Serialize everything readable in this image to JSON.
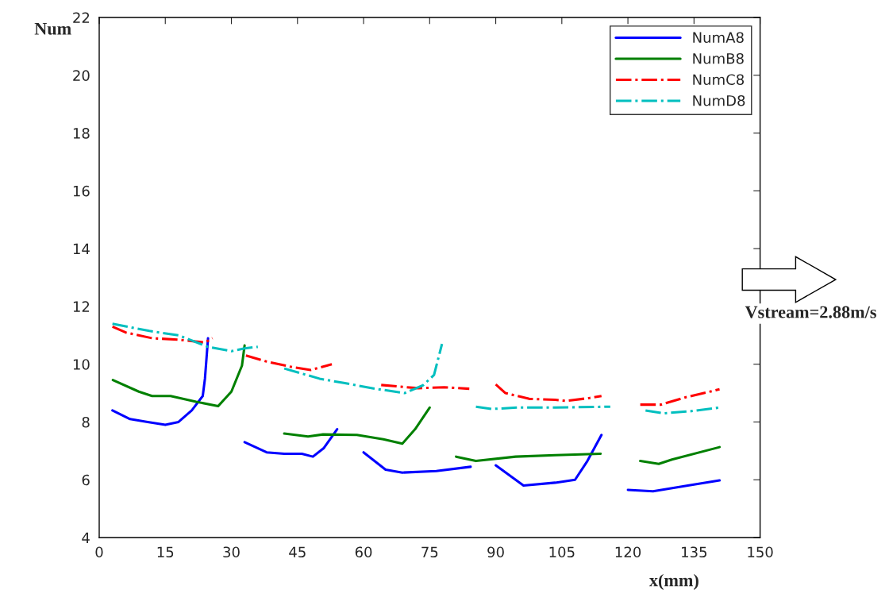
{
  "chart_data": {
    "type": "line",
    "xlabel": "x(mm)",
    "ylabel": "Num",
    "xlim": [
      0,
      150
    ],
    "xticks": [
      0,
      15,
      30,
      45,
      60,
      75,
      90,
      105,
      120,
      135,
      150
    ],
    "ylim": [
      4,
      22
    ],
    "yticks": [
      4,
      6,
      8,
      10,
      12,
      14,
      16,
      18,
      20,
      22
    ],
    "grid": false,
    "legend": "top right",
    "marker": "none",
    "annotations": [
      "Vstream=2.88m/s"
    ],
    "series": [
      {
        "name": "NumA8",
        "color": "#0000ff",
        "line_style": "solid",
        "x": [
          3,
          7,
          11,
          15,
          18,
          21,
          23.5,
          24,
          24.7,
          null,
          33,
          38,
          42,
          46,
          48.5,
          51,
          54,
          null,
          60,
          65,
          68.8,
          76.5,
          84.3,
          null,
          90,
          96.3,
          103.5,
          108,
          110.8,
          114,
          null,
          120,
          125.7,
          133.6,
          140.8
        ],
        "values": [
          8.4,
          8.1,
          8.0,
          7.9,
          8.0,
          8.4,
          8.9,
          9.5,
          10.9,
          null,
          7.3,
          6.95,
          6.9,
          6.9,
          6.8,
          7.1,
          7.75,
          null,
          6.95,
          6.35,
          6.25,
          6.3,
          6.45,
          null,
          6.5,
          5.8,
          5.9,
          6.0,
          6.65,
          7.55,
          null,
          5.65,
          5.6,
          5.8,
          5.98
        ]
      },
      {
        "name": "NumB8",
        "color": "#008000",
        "line_style": "solid",
        "x": [
          3.1,
          9,
          12,
          16.2,
          22,
          27,
          30,
          32.4,
          33,
          null,
          42,
          47.4,
          50.8,
          58.5,
          64.5,
          68.8,
          71.7,
          75,
          null,
          81,
          85.5,
          94.5,
          103.5,
          113.8,
          null,
          122.8,
          127,
          130,
          140.8
        ],
        "values": [
          9.45,
          9.05,
          8.9,
          8.9,
          8.7,
          8.55,
          9.05,
          9.95,
          10.65,
          null,
          7.6,
          7.5,
          7.57,
          7.55,
          7.4,
          7.25,
          7.75,
          8.5,
          null,
          6.8,
          6.65,
          6.8,
          6.85,
          6.9,
          null,
          6.65,
          6.55,
          6.7,
          7.13
        ]
      },
      {
        "name": "NumC8",
        "color": "#ff0000",
        "line_style": "dashdot",
        "x": [
          3,
          6,
          12,
          18,
          24,
          25.7,
          null,
          33.3,
          37.8,
          43.8,
          48,
          52.8,
          null,
          64,
          72.4,
          78.3,
          84,
          null,
          90,
          92.2,
          97.6,
          103.5,
          106,
          111.3,
          114,
          null,
          122.8,
          127.5,
          133,
          140.8
        ],
        "values": [
          11.3,
          11.1,
          10.9,
          10.85,
          10.75,
          10.9,
          null,
          10.3,
          10.1,
          9.9,
          9.8,
          10.0,
          null,
          9.28,
          9.17,
          9.2,
          9.15,
          null,
          9.3,
          9.0,
          8.8,
          8.77,
          8.73,
          8.83,
          8.9,
          null,
          8.6,
          8.6,
          8.85,
          9.13
        ]
      },
      {
        "name": "NumD8",
        "color": "#00bfbf",
        "line_style": "dashdot",
        "x": [
          3,
          11.4,
          18,
          24.7,
          30,
          33,
          36,
          null,
          42,
          50,
          55.5,
          62.7,
          69.3,
          73.5,
          76,
          77.8,
          null,
          85.5,
          89,
          95,
          103.5,
          116,
          null,
          124,
          128,
          134,
          140.8
        ],
        "values": [
          11.4,
          11.15,
          11.0,
          10.6,
          10.45,
          10.55,
          10.6,
          null,
          9.85,
          9.5,
          9.35,
          9.15,
          9.0,
          9.27,
          9.63,
          10.7,
          null,
          8.53,
          8.45,
          8.5,
          8.5,
          8.53,
          null,
          8.4,
          8.3,
          8.37,
          8.5
        ]
      }
    ]
  }
}
